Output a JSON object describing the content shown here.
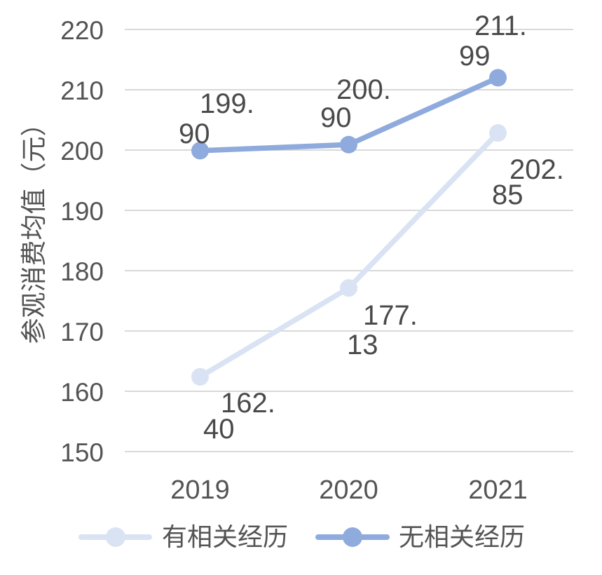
{
  "chart_data": {
    "type": "line",
    "categories": [
      "2019",
      "2020",
      "2021"
    ],
    "series": [
      {
        "name": "有相关经历",
        "values": [
          162.4,
          177.13,
          202.85
        ],
        "color": "#dae3f3",
        "labels": [
          [
            "162.",
            "40"
          ],
          [
            "177.",
            "13"
          ],
          [
            "202.",
            "85"
          ]
        ]
      },
      {
        "name": "无相关经历",
        "values": [
          199.9,
          200.9,
          211.99
        ],
        "color": "#8faadc",
        "labels": [
          [
            "199.",
            "90"
          ],
          [
            "200.",
            "90"
          ],
          [
            "211.",
            "99"
          ]
        ]
      }
    ],
    "title": "",
    "xlabel": "",
    "ylabel": "参观消费均值（元）",
    "ylim": [
      150,
      220
    ],
    "yticks": [
      220,
      210,
      200,
      190,
      180,
      170,
      160,
      150
    ],
    "grid": true,
    "legend_position": "bottom"
  },
  "colors": {
    "gridline": "#d9d9d9",
    "text": "#545454",
    "background": "#ffffff"
  }
}
